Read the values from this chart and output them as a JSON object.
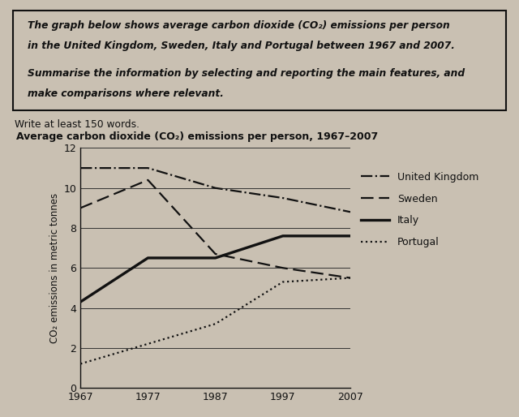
{
  "title": "Average carbon dioxide (CO₂) emissions per person, 1967–2007",
  "ylabel": "CO₂ emissions in metric tonnes",
  "years": [
    1967,
    1977,
    1987,
    1997,
    2007
  ],
  "united_kingdom": [
    11.0,
    11.0,
    10.0,
    9.5,
    8.8
  ],
  "sweden": [
    9.0,
    10.4,
    6.7,
    6.0,
    5.5
  ],
  "italy": [
    4.3,
    6.5,
    6.5,
    7.6,
    7.6
  ],
  "portugal": [
    1.2,
    2.2,
    3.2,
    5.3,
    5.5
  ],
  "ylim": [
    0,
    12
  ],
  "yticks": [
    0,
    2,
    4,
    6,
    8,
    10,
    12
  ],
  "bg_color": "#c9c0b2",
  "text_color": "#111111",
  "line_color": "#111111",
  "box_line1": "The graph below shows average carbon dioxide (CO₂) emissions per person",
  "box_line2": "in the United Kingdom, Sweden, Italy and Portugal between 1967 and 2007.",
  "box_line3": "Summarise the information by selecting and reporting the main features, and",
  "box_line4": "make comparisons where relevant.",
  "write_text": "Write at least 150 words."
}
